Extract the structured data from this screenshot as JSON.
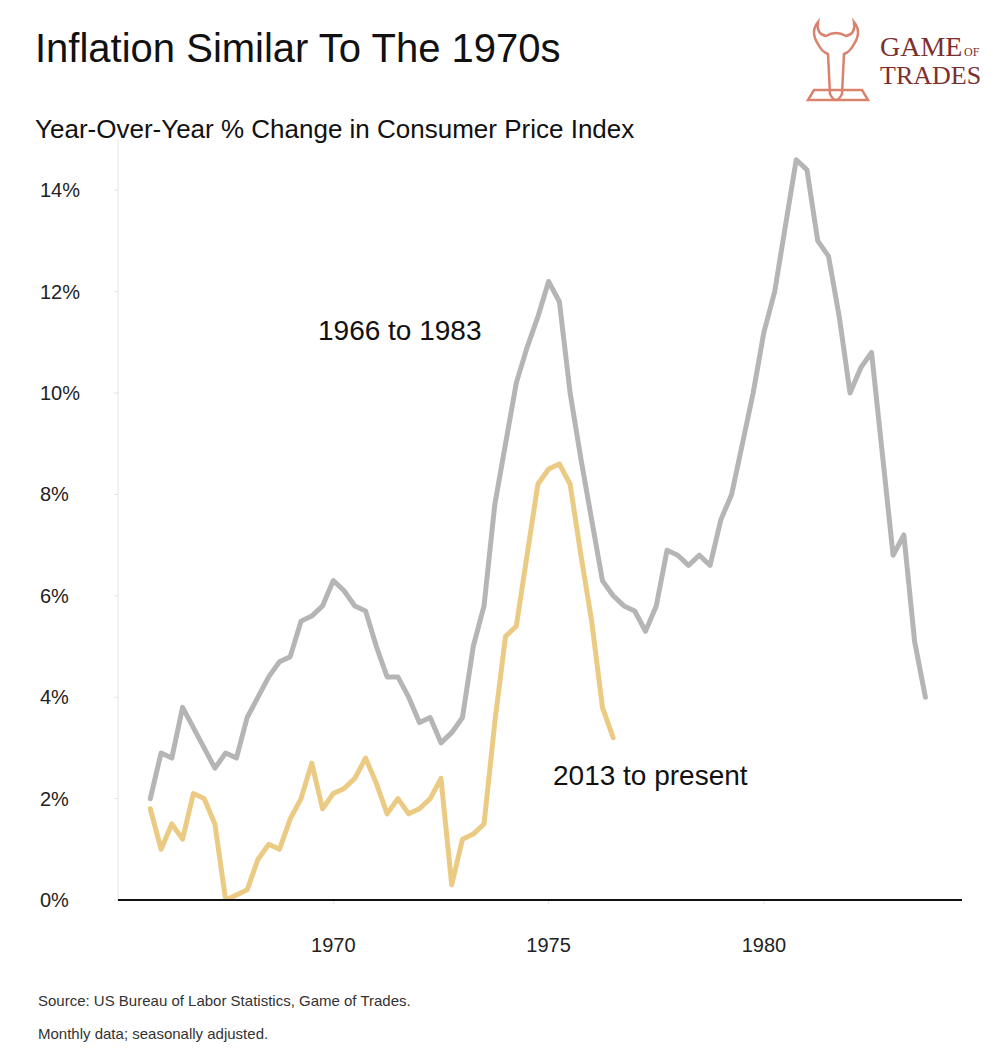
{
  "chart_data": {
    "type": "line",
    "title": "Inflation Similar To The 1970s",
    "subtitle": "Year-Over-Year % Change in Consumer Price Index",
    "brand": [
      "GAME",
      "OF",
      "TRADES"
    ],
    "notes": [
      "Source: US Bureau of Labor Statistics, Game of Trades.",
      "Monthly data; seasonally adjusted."
    ],
    "x": [
      1965.75,
      1966,
      1966.25,
      1966.5,
      1966.75,
      1967,
      1967.25,
      1967.5,
      1967.75,
      1968,
      1968.25,
      1968.5,
      1968.75,
      1969,
      1969.25,
      1969.5,
      1969.75,
      1970,
      1970.25,
      1970.5,
      1970.75,
      1971,
      1971.25,
      1971.5,
      1971.75,
      1972,
      1972.25,
      1972.5,
      1972.75,
      1973,
      1973.25,
      1973.5,
      1973.75,
      1974,
      1974.25,
      1974.5,
      1974.75,
      1975,
      1975.25,
      1975.5,
      1975.75,
      1976,
      1976.25,
      1976.5,
      1976.75,
      1977,
      1977.25,
      1977.5,
      1977.75,
      1978,
      1978.25,
      1978.5,
      1978.75,
      1979,
      1979.25,
      1979.5,
      1979.75,
      1980,
      1980.25,
      1980.5,
      1980.75,
      1981,
      1981.25,
      1981.5,
      1981.75,
      1982,
      1982.25,
      1982.5,
      1982.75,
      1983,
      1983.25,
      1983.5,
      1983.75
    ],
    "series": [
      {
        "name": "1966 to 1983",
        "color": "#b5b5b5",
        "values": [
          2.0,
          2.9,
          2.8,
          3.8,
          3.4,
          3.0,
          2.6,
          2.9,
          2.8,
          3.6,
          4.0,
          4.4,
          4.7,
          4.8,
          5.5,
          5.6,
          5.8,
          6.3,
          6.1,
          5.8,
          5.7,
          5.0,
          4.4,
          4.4,
          4.0,
          3.5,
          3.6,
          3.1,
          3.3,
          3.6,
          5.0,
          5.8,
          7.8,
          9.0,
          10.2,
          10.9,
          11.5,
          12.2,
          11.8,
          10.0,
          8.7,
          7.5,
          6.3,
          6.0,
          5.8,
          5.7,
          5.3,
          5.8,
          6.9,
          6.8,
          6.6,
          6.8,
          6.6,
          7.5,
          8.0,
          9.0,
          10.0,
          11.2,
          12.0,
          13.3,
          14.6,
          14.4,
          13.0,
          12.7,
          11.5,
          10.0,
          10.5,
          10.8,
          8.8,
          6.8,
          7.2,
          5.1,
          4.0
        ]
      },
      {
        "name": "2013 to present",
        "color": "#ebcb84",
        "values": [
          1.8,
          1.0,
          1.5,
          1.2,
          2.1,
          2.0,
          1.5,
          0.0,
          0.1,
          0.2,
          0.8,
          1.1,
          1.0,
          1.6,
          2.0,
          2.7,
          1.8,
          2.1,
          2.2,
          2.4,
          2.8,
          2.3,
          1.7,
          2.0,
          1.7,
          1.8,
          2.0,
          2.4,
          0.3,
          1.2,
          1.3,
          1.5,
          3.5,
          5.2,
          5.4,
          6.8,
          8.2,
          8.5,
          8.6,
          8.2,
          6.8,
          5.5,
          3.8,
          3.2,
          null,
          null,
          null,
          null,
          null,
          null,
          null,
          null,
          null,
          null,
          null,
          null,
          null,
          null,
          null,
          null,
          null,
          null,
          null,
          null,
          null,
          null,
          null,
          null,
          null,
          null,
          null,
          null,
          null
        ]
      }
    ],
    "xlim": [
      1965,
      1984.6
    ],
    "xticks": [
      1970,
      1975,
      1980
    ],
    "ylim": [
      0,
      15
    ],
    "yticks": [
      {
        "value": 0,
        "label": "0%"
      },
      {
        "value": 2,
        "label": "2%"
      },
      {
        "value": 4,
        "label": "4%"
      },
      {
        "value": 6,
        "label": "6%"
      },
      {
        "value": 8,
        "label": "8%"
      },
      {
        "value": 10,
        "label": "10%"
      },
      {
        "value": 12,
        "label": "12%"
      },
      {
        "value": 14,
        "label": "14%"
      }
    ],
    "grid": false
  }
}
